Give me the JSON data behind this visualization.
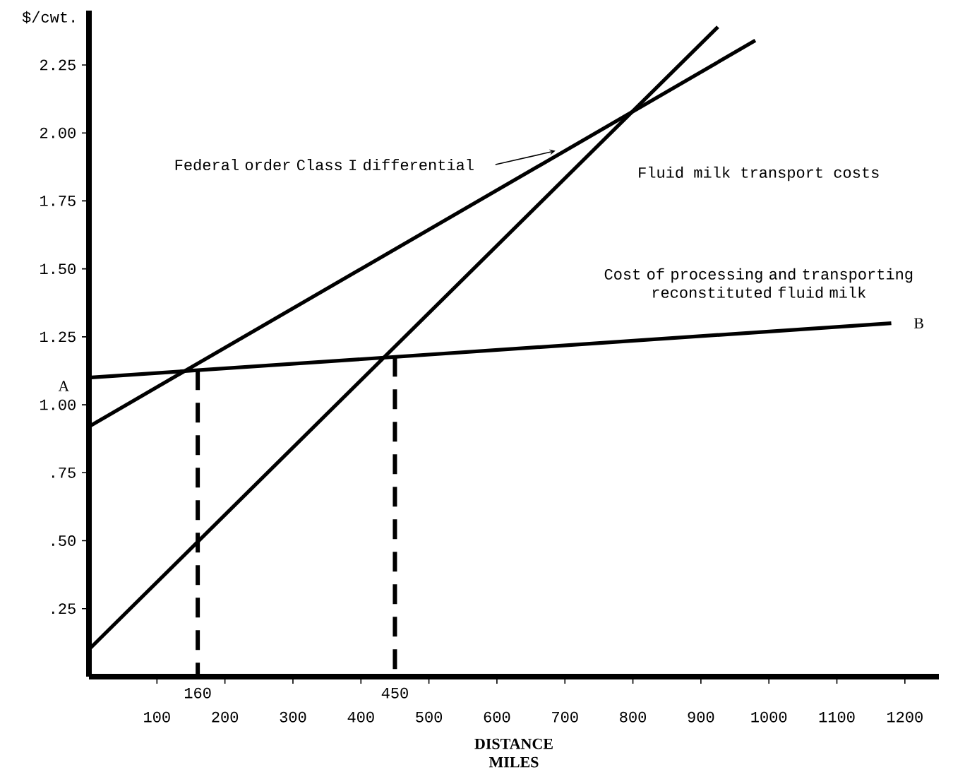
{
  "chart_data": {
    "type": "line",
    "ylabel": "$/cwt.",
    "xlabel": "DISTANCE MILES",
    "xlim": [
      0,
      1250
    ],
    "ylim": [
      0,
      2.45
    ],
    "xticks": [
      100,
      200,
      300,
      400,
      500,
      600,
      700,
      800,
      900,
      1000,
      1100,
      1200
    ],
    "yticks": [
      {
        "value": 0.25,
        "label": ".25"
      },
      {
        "value": 0.5,
        "label": ".50"
      },
      {
        "value": 0.75,
        "label": ".75"
      },
      {
        "value": 1.0,
        "label": "1.00"
      },
      {
        "value": 1.25,
        "label": "1.25"
      },
      {
        "value": 1.5,
        "label": "1.50"
      },
      {
        "value": 1.75,
        "label": "1.75"
      },
      {
        "value": 2.0,
        "label": "2.00"
      },
      {
        "value": 2.25,
        "label": "2.25"
      }
    ],
    "series": [
      {
        "name": "Cost of processing and transporting reconstituted fluid milk",
        "color": "#000000",
        "x": [
          0,
          1180
        ],
        "values": [
          1.1,
          1.3
        ]
      },
      {
        "name": "Federal order Class I differential",
        "color": "#000000",
        "x": [
          0,
          980
        ],
        "values": [
          0.92,
          2.34
        ]
      },
      {
        "name": "Fluid milk transport costs",
        "color": "#000000",
        "x": [
          0,
          925
        ],
        "values": [
          0.1,
          2.39
        ]
      }
    ],
    "line_style": "solid",
    "ref_lines": [
      {
        "axis": "x",
        "value": 160,
        "label": "160",
        "line_style": "dashed"
      },
      {
        "axis": "x",
        "value": 450,
        "label": "450",
        "line_style": "dashed"
      }
    ],
    "annotations": [
      {
        "text": "A",
        "x": 0,
        "y": 1.1
      },
      {
        "text": "B",
        "x": 1180,
        "y": 1.3
      }
    ]
  }
}
